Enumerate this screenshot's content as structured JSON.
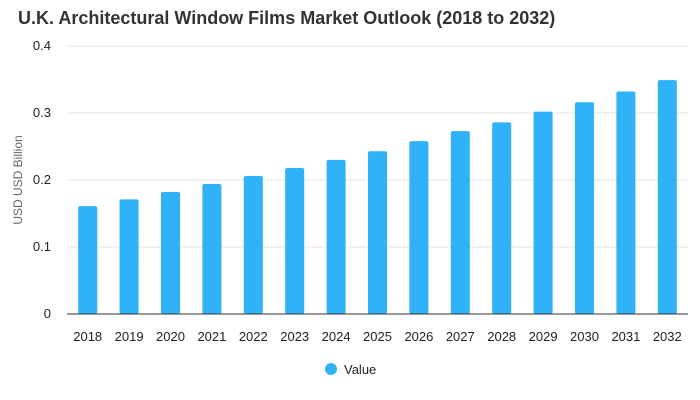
{
  "chart_data": {
    "type": "bar",
    "title": "U.K. Architectural Window Films Market Outlook (2018 to 2032)",
    "xlabel": "",
    "ylabel": "USD USD Billion",
    "categories": [
      "2018",
      "2019",
      "2020",
      "2021",
      "2022",
      "2023",
      "2024",
      "2025",
      "2026",
      "2027",
      "2028",
      "2029",
      "2030",
      "2031",
      "2032"
    ],
    "series": [
      {
        "name": "Value",
        "values": [
          0.161,
          0.171,
          0.182,
          0.194,
          0.206,
          0.218,
          0.23,
          0.243,
          0.258,
          0.273,
          0.286,
          0.302,
          0.316,
          0.332,
          0.349
        ]
      }
    ],
    "ylim": [
      0,
      0.4
    ],
    "yticks": [
      0,
      0.1,
      0.2,
      0.3,
      0.4
    ],
    "ytick_labels": [
      "0",
      "0.1",
      "0.2",
      "0.3",
      "0.4"
    ],
    "grid": true,
    "legend_position": "bottom-center",
    "colors": {
      "bar": "#2fb2f7",
      "grid": "#e5e5e5",
      "axis": "#333333"
    }
  }
}
